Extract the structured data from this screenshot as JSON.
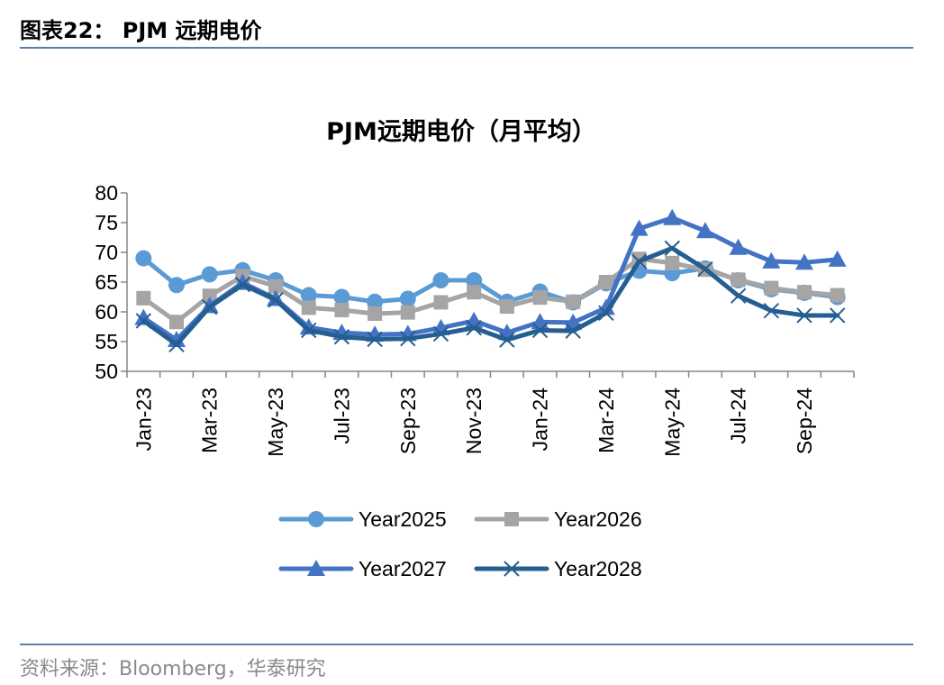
{
  "header": {
    "figure_title": "图表22： PJM 远期电价"
  },
  "footer": {
    "source": "资料来源：Bloomberg，华泰研究"
  },
  "chart_data": {
    "type": "line",
    "title": "PJM远期电价（月平均）",
    "xlabel": "",
    "ylabel": "",
    "ylim": [
      50,
      80
    ],
    "yticks": [
      50,
      55,
      60,
      65,
      70,
      75,
      80
    ],
    "grid": false,
    "legend_position": "bottom",
    "categories": [
      "Jan-23",
      "Feb-23",
      "Mar-23",
      "Apr-23",
      "May-23",
      "Jun-23",
      "Jul-23",
      "Aug-23",
      "Sep-23",
      "Oct-23",
      "Nov-23",
      "Dec-23",
      "Jan-24",
      "Feb-24",
      "Mar-24",
      "Apr-24",
      "May-24",
      "Jun-24",
      "Jul-24",
      "Aug-24",
      "Sep-24",
      "Oct-24"
    ],
    "x_tick_labels": [
      "Jan-23",
      "",
      "Mar-23",
      "",
      "May-23",
      "",
      "Jul-23",
      "",
      "Sep-23",
      "",
      "Nov-23",
      "",
      "Jan-24",
      "",
      "Mar-24",
      "",
      "May-24",
      "",
      "Jul-24",
      "",
      "Sep-24",
      ""
    ],
    "series": [
      {
        "name": "Year2025",
        "color": "#5b9bd5",
        "marker": "circle",
        "values": [
          69.0,
          64.5,
          66.3,
          67.0,
          65.3,
          62.8,
          62.5,
          61.7,
          62.2,
          65.3,
          65.3,
          61.7,
          63.4,
          61.6,
          64.8,
          66.9,
          66.5,
          67.3,
          65.3,
          63.8,
          63.2,
          62.5
        ]
      },
      {
        "name": "Year2026",
        "color": "#a5a5a5",
        "marker": "square",
        "values": [
          62.3,
          58.3,
          62.7,
          66.0,
          64.3,
          60.7,
          60.3,
          59.7,
          59.9,
          61.6,
          63.3,
          60.9,
          62.4,
          61.7,
          65.0,
          68.9,
          68.2,
          67.1,
          65.4,
          64.0,
          63.3,
          62.8
        ]
      },
      {
        "name": "Year2027",
        "color": "#4472c4",
        "marker": "triangle",
        "values": [
          59.0,
          55.3,
          61.0,
          64.9,
          62.2,
          57.4,
          56.5,
          56.2,
          56.3,
          57.3,
          58.5,
          56.5,
          58.3,
          58.2,
          60.7,
          74.0,
          75.8,
          73.6,
          70.8,
          68.5,
          68.3,
          68.8
        ]
      },
      {
        "name": "Year2028",
        "color": "#255e91",
        "marker": "x",
        "values": [
          58.5,
          54.5,
          60.8,
          64.6,
          62.0,
          56.9,
          55.8,
          55.4,
          55.5,
          56.3,
          57.3,
          55.3,
          56.9,
          56.8,
          59.8,
          68.5,
          70.7,
          67.2,
          62.7,
          60.2,
          59.4,
          59.4
        ]
      }
    ]
  }
}
